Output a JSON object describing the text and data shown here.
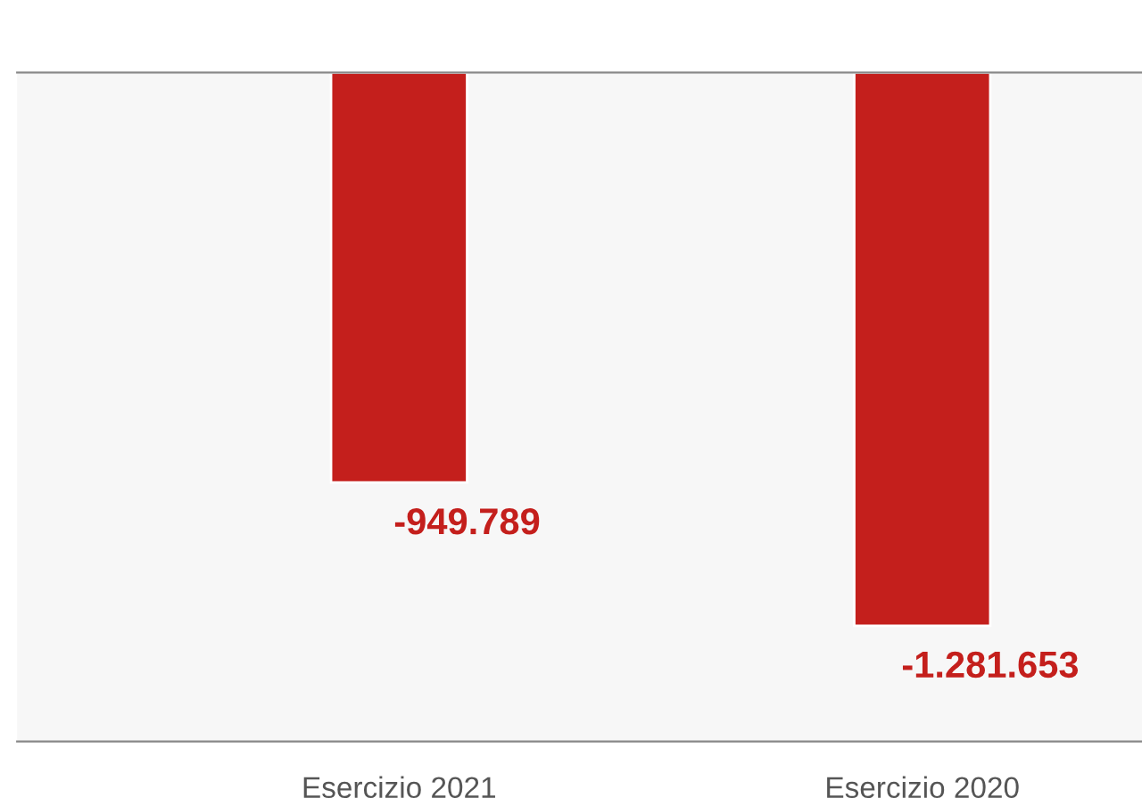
{
  "chart_data": {
    "type": "bar",
    "categories": [
      "Esercizio 2021",
      "Esercizio 2020"
    ],
    "values": [
      -949789,
      -1281653
    ],
    "value_labels": [
      "-949.789",
      "-1.281.653"
    ],
    "color": "#c41f1c",
    "ylim": [
      -1550000,
      0
    ]
  }
}
